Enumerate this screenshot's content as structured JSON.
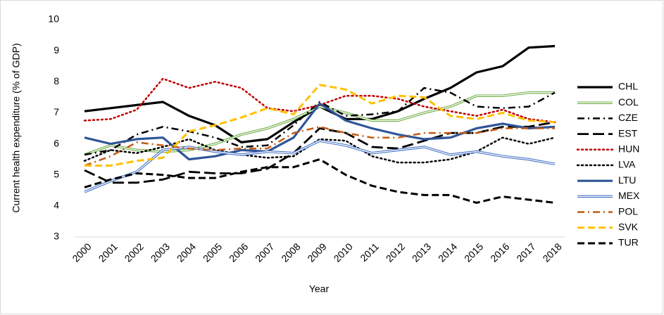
{
  "chart_data": {
    "type": "line",
    "x_label": "Year",
    "y_label": "Current health expenditure (% of GDP)",
    "categories": [
      "2000",
      "2001",
      "2002",
      "2003",
      "2004",
      "2005",
      "2006",
      "2007",
      "2008",
      "2009",
      "2010",
      "2011",
      "2012",
      "2013",
      "2014",
      "2015",
      "2016",
      "2017",
      "2018"
    ],
    "ylim": [
      3,
      10
    ],
    "yticks": [
      3,
      4,
      5,
      6,
      7,
      8,
      9,
      10
    ],
    "grid": false,
    "legend": "right",
    "series": [
      {
        "name": "CHL",
        "color": "#000000",
        "style": "solid",
        "values": [
          7.05,
          7.15,
          7.25,
          7.35,
          6.9,
          6.6,
          6.05,
          6.15,
          6.7,
          7.2,
          6.8,
          6.8,
          7.05,
          7.45,
          7.8,
          8.3,
          8.5,
          9.1,
          9.15
        ]
      },
      {
        "name": "COL",
        "color": "#70ad47",
        "style": "double",
        "values": [
          5.65,
          5.95,
          5.8,
          5.75,
          5.8,
          6.0,
          6.3,
          6.5,
          6.8,
          7.2,
          7.0,
          6.75,
          6.75,
          7.0,
          7.2,
          7.55,
          7.55,
          7.65,
          7.65
        ]
      },
      {
        "name": "CZE",
        "color": "#000000",
        "style": "dash-dot",
        "values": [
          5.65,
          5.8,
          6.3,
          6.55,
          6.4,
          6.2,
          5.9,
          5.95,
          6.6,
          7.35,
          6.9,
          6.95,
          7.05,
          7.8,
          7.65,
          7.2,
          7.15,
          7.2,
          7.65
        ]
      },
      {
        "name": "EST",
        "color": "#000000",
        "style": "long-dash",
        "values": [
          5.15,
          4.75,
          4.75,
          4.85,
          5.1,
          5.05,
          5.05,
          5.2,
          5.7,
          6.5,
          6.35,
          5.9,
          5.85,
          6.1,
          6.35,
          6.35,
          6.55,
          6.55,
          6.7
        ]
      },
      {
        "name": "HUN",
        "color": "#c00000",
        "style": "dotted",
        "values": [
          6.75,
          6.8,
          7.1,
          8.1,
          7.8,
          8.0,
          7.8,
          7.15,
          7.05,
          7.25,
          7.55,
          7.55,
          7.45,
          7.2,
          7.05,
          6.9,
          7.1,
          6.8,
          6.7
        ]
      },
      {
        "name": "LVA",
        "color": "#000000",
        "style": "dotted",
        "values": [
          5.45,
          5.8,
          5.7,
          5.9,
          6.15,
          5.8,
          5.65,
          5.55,
          5.6,
          6.15,
          6.1,
          5.6,
          5.4,
          5.4,
          5.5,
          5.75,
          6.2,
          6.0,
          6.2
        ]
      },
      {
        "name": "LTU",
        "color": "#2f5597",
        "style": "solid",
        "values": [
          6.2,
          6.0,
          6.15,
          6.2,
          5.5,
          5.6,
          5.8,
          5.75,
          6.2,
          7.3,
          6.75,
          6.5,
          6.3,
          6.15,
          6.2,
          6.5,
          6.65,
          6.5,
          6.55
        ]
      },
      {
        "name": "MEX",
        "color": "#4472c4",
        "style": "double",
        "values": [
          4.45,
          4.8,
          5.1,
          5.8,
          5.9,
          5.75,
          5.65,
          5.75,
          5.7,
          6.1,
          5.95,
          5.7,
          5.8,
          5.9,
          5.65,
          5.75,
          5.6,
          5.5,
          5.35
        ]
      },
      {
        "name": "POL",
        "color": "#c55a11",
        "style": "dash-dot",
        "values": [
          5.3,
          5.6,
          6.05,
          5.95,
          5.85,
          5.8,
          5.85,
          5.85,
          6.35,
          6.55,
          6.35,
          6.2,
          6.2,
          6.35,
          6.35,
          6.35,
          6.5,
          6.5,
          6.5
        ]
      },
      {
        "name": "SVK",
        "color": "#ffc000",
        "style": "dashed",
        "values": [
          5.3,
          5.3,
          5.45,
          5.55,
          6.4,
          6.6,
          6.85,
          7.15,
          6.95,
          7.9,
          7.75,
          7.3,
          7.55,
          7.5,
          6.9,
          6.8,
          7.0,
          6.75,
          6.7
        ]
      },
      {
        "name": "TUR",
        "color": "#000000",
        "style": "dashed",
        "values": [
          4.6,
          4.85,
          5.05,
          5.0,
          4.9,
          4.9,
          5.1,
          5.25,
          5.25,
          5.5,
          5.0,
          4.65,
          4.45,
          4.35,
          4.35,
          4.1,
          4.3,
          4.2,
          4.1
        ]
      }
    ]
  }
}
